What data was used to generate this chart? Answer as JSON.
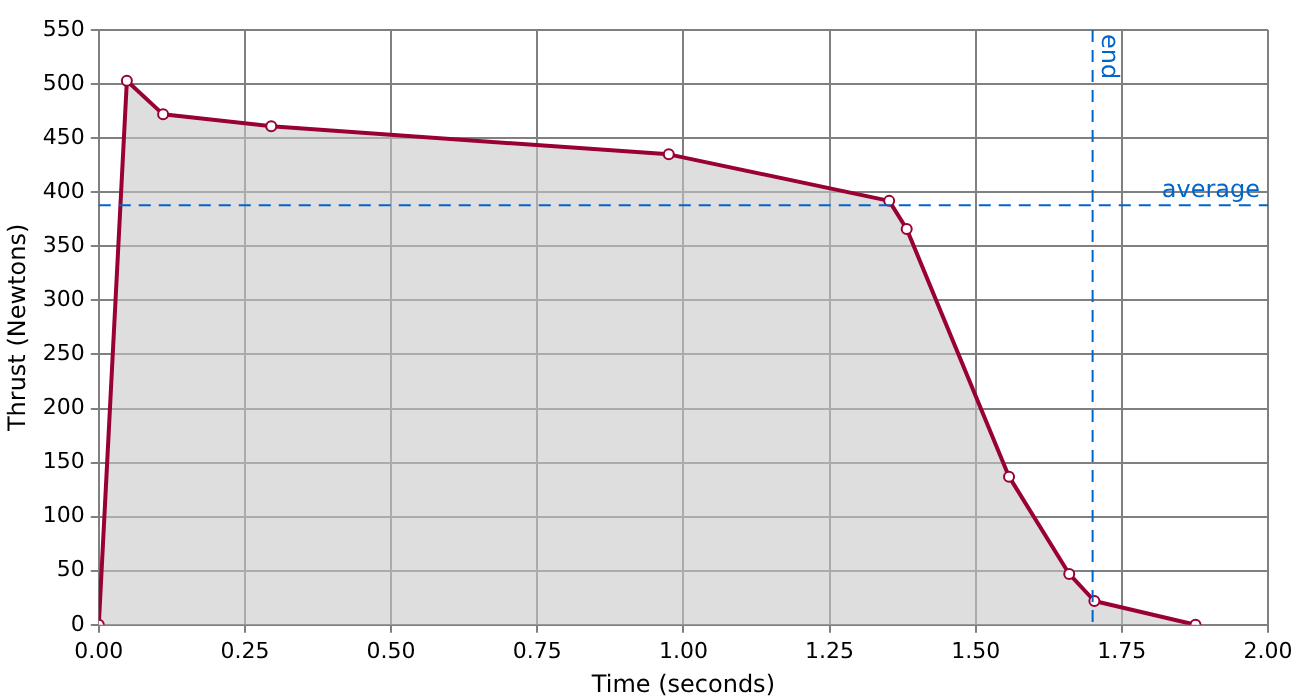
{
  "chart_data": {
    "type": "area",
    "xlabel": "Time (seconds)",
    "ylabel": "Thrust (Newtons)",
    "x": [
      0,
      0.048,
      0.11,
      0.295,
      0.975,
      1.352,
      1.382,
      1.557,
      1.66,
      1.703,
      1.876
    ],
    "series": [
      {
        "color": "#990033",
        "values": [
          0,
          503,
          472,
          461,
          435,
          392,
          366,
          137,
          47,
          22,
          0
        ]
      }
    ],
    "xlim": [
      0,
      2
    ],
    "xticks": [
      {
        "value": 0,
        "label": "0.00"
      },
      {
        "value": 0.25,
        "label": "0.25"
      },
      {
        "value": 0.5,
        "label": "0.50"
      },
      {
        "value": 0.75,
        "label": "0.75"
      },
      {
        "value": 1,
        "label": "1.00"
      },
      {
        "value": 1.25,
        "label": "1.25"
      },
      {
        "value": 1.5,
        "label": "1.50"
      },
      {
        "value": 1.75,
        "label": "1.75"
      },
      {
        "value": 2,
        "label": "2.00"
      }
    ],
    "ylim": [
      0,
      550
    ],
    "yticks": [
      0,
      50,
      100,
      150,
      200,
      250,
      300,
      350,
      400,
      450,
      500,
      550
    ],
    "ref_lines": [
      {
        "axis": "y",
        "value": 388,
        "label": "average",
        "color": "#0066cc",
        "line_style": "dashed"
      },
      {
        "axis": "x",
        "value": 1.7,
        "label": "end",
        "color": "#0066cc",
        "line_style": "dashed"
      }
    ],
    "grid": true,
    "legend": false,
    "marker": "circle",
    "line_style": "solid"
  }
}
